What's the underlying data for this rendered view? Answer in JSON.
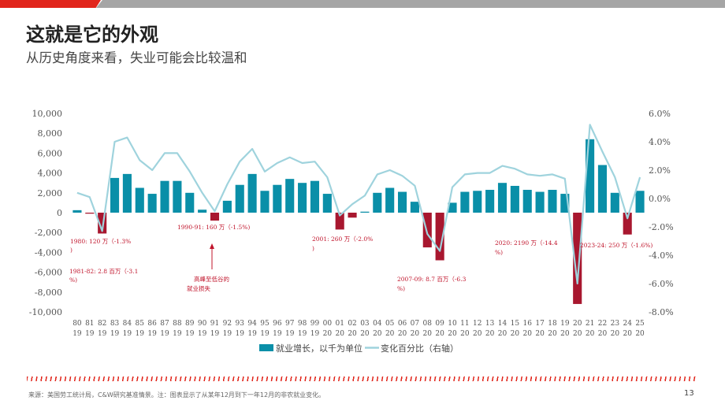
{
  "header": {
    "title": "这就是它的外观",
    "subtitle": "从历史角度来看，失业可能会比较温和"
  },
  "footer": {
    "source": "来源：美国劳工统计局，C&W研究基准情景。注：图表显示了从某年12月到下一年12月的非农就业变化。",
    "page_number": "13"
  },
  "colors": {
    "positive_bar": "#0a8fa8",
    "negative_bar": "#a8172f",
    "line": "#9fd3dd",
    "annotation": "#c0142b",
    "accent_red": "#e1251b",
    "bar_gray": "#a5a5a5"
  },
  "chart_data": {
    "type": "bar",
    "years": [
      "1980",
      "1981",
      "1982",
      "1983",
      "1984",
      "1985",
      "1986",
      "1987",
      "1988",
      "1989",
      "1990",
      "1991",
      "1992",
      "1993",
      "1994",
      "1995",
      "1996",
      "1997",
      "1998",
      "1999",
      "2000",
      "2001",
      "2002",
      "2003",
      "2004",
      "2005",
      "2006",
      "2007",
      "2008",
      "2009",
      "2010",
      "2011",
      "2012",
      "2013",
      "2014",
      "2015",
      "2016",
      "2017",
      "2018",
      "2019",
      "2020",
      "2021",
      "2022",
      "2023",
      "2024",
      "2025"
    ],
    "x_tick_top": [
      "80",
      "81",
      "82",
      "83",
      "84",
      "85",
      "86",
      "87",
      "88",
      "89",
      "90",
      "91",
      "92",
      "93",
      "94",
      "95",
      "96",
      "97",
      "98",
      "99",
      "00",
      "01",
      "02",
      "03",
      "04",
      "05",
      "06",
      "07",
      "08",
      "09",
      "10",
      "11",
      "12",
      "13",
      "14",
      "15",
      "16",
      "17",
      "18",
      "19",
      "20",
      "21",
      "22",
      "23",
      "24",
      "25"
    ],
    "x_tick_bottom": [
      "19",
      "19",
      "19",
      "19",
      "19",
      "19",
      "19",
      "19",
      "19",
      "19",
      "19",
      "19",
      "19",
      "19",
      "19",
      "19",
      "19",
      "19",
      "19",
      "19",
      "20",
      "20",
      "20",
      "20",
      "20",
      "20",
      "20",
      "20",
      "20",
      "20",
      "20",
      "20",
      "20",
      "20",
      "20",
      "20",
      "20",
      "20",
      "20",
      "20",
      "20",
      "20",
      "20",
      "20",
      "20",
      "20"
    ],
    "series": [
      {
        "name": "就业增长，以千为单位",
        "axis": "left",
        "kind": "bar",
        "values": [
          250,
          -100,
          -2100,
          3500,
          3900,
          2500,
          1900,
          3200,
          3200,
          2000,
          300,
          -800,
          1200,
          2800,
          3900,
          2200,
          2800,
          3400,
          3000,
          3200,
          1900,
          -1700,
          -500,
          100,
          2000,
          2500,
          2100,
          1100,
          -3500,
          -4800,
          1000,
          2100,
          2200,
          2300,
          3000,
          2700,
          2300,
          2100,
          2300,
          1900,
          -9200,
          7400,
          4800,
          2000,
          -2200,
          2200
        ]
      },
      {
        "name": "变化百分比（右轴）",
        "axis": "right",
        "kind": "line",
        "values": [
          0.4,
          0.1,
          -2.3,
          4.0,
          4.3,
          2.7,
          2.0,
          3.2,
          3.2,
          1.9,
          0.4,
          -0.9,
          1.0,
          2.6,
          3.5,
          1.9,
          2.5,
          2.9,
          2.5,
          2.6,
          1.5,
          -1.2,
          -0.4,
          0.2,
          1.7,
          2.0,
          1.6,
          0.9,
          -2.5,
          -3.7,
          0.8,
          1.7,
          1.8,
          1.8,
          2.3,
          2.1,
          1.7,
          1.6,
          1.7,
          1.4,
          -6.0,
          5.2,
          3.3,
          1.5,
          -1.4,
          1.5
        ]
      }
    ],
    "y_left": {
      "min": -10000,
      "max": 10000,
      "ticks": [
        "10,000",
        "8,000",
        "6,000",
        "4,000",
        "2,000",
        "0",
        "-2,000",
        "-4,000",
        "-6,000",
        "-8,000",
        "-10,000"
      ],
      "tick_values": [
        10000,
        8000,
        6000,
        4000,
        2000,
        0,
        -2000,
        -4000,
        -6000,
        -8000,
        -10000
      ]
    },
    "y_right": {
      "min": -8.0,
      "max": 6.0,
      "ticks": [
        "6.0%",
        "4.0%",
        "2.0%",
        "0.0%",
        "-2.0%",
        "-4.0%",
        "-6.0%",
        "-8.0%"
      ],
      "tick_values": [
        6,
        4,
        2,
        0,
        -2,
        -4,
        -6,
        -8
      ]
    },
    "annotations": [
      {
        "text": "1980: 120 万（-1.3%",
        "text2": ")"
      },
      {
        "text": "1981-82: 2.8 百万（-3.1",
        "text2": "%)"
      },
      {
        "text": "1990-91: 160 万（-1.5%)",
        "text2": ""
      },
      {
        "text": "高峰至低谷的",
        "text2": "就业损失"
      },
      {
        "text": "2001: 260 万（-2.0%",
        "text2": ")"
      },
      {
        "text": "2007-09: 8.7 百万（-6.3",
        "text2": "%)"
      },
      {
        "text": "2020: 2190 万（-14.4",
        "text2": "%)"
      },
      {
        "text": "2023-24: 250 万（-1.6%)",
        "text2": ""
      }
    ],
    "legend_position": "bottom",
    "grid": false
  }
}
